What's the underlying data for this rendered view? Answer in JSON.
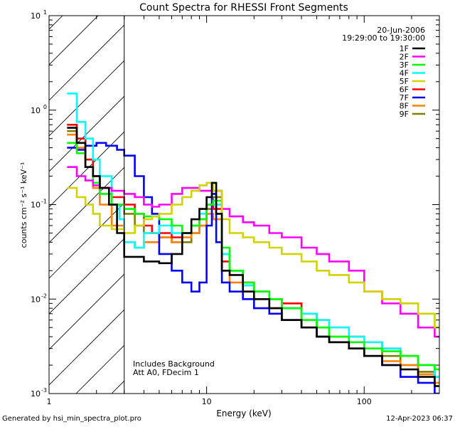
{
  "chart_data": {
    "type": "line",
    "title": "Count Spectra for RHESSI Front Segments",
    "xlabel": "Energy (keV)",
    "ylabel": "counts cm⁻² s⁻¹ keV⁻¹",
    "x_scale": "log",
    "y_scale": "log",
    "xlim": [
      1,
      300
    ],
    "ylim": [
      0.001,
      10
    ],
    "x_ticks": [
      1,
      10,
      100
    ],
    "x_tick_labels": [
      "1",
      "10",
      "100"
    ],
    "y_ticks": [
      0.001,
      0.01,
      0.1,
      1,
      10
    ],
    "y_tick_labels": [
      {
        "base": "10",
        "exp": "-3"
      },
      {
        "base": "10",
        "exp": "-2"
      },
      {
        "base": "10",
        "exp": "-1"
      },
      {
        "base": "10",
        "exp": "0"
      },
      {
        "base": "10",
        "exp": "1"
      }
    ],
    "date": "20-Jun-2006",
    "time_range": "19:29:00 to 19:30:00",
    "hatched_region_max_energy": 3,
    "annotations": [
      "Includes Background",
      "Att A0, FDecim 1"
    ],
    "legend_position": "top-right",
    "series": [
      {
        "name": "1F",
        "color": "#000000",
        "points": [
          [
            1.3,
            0.65
          ],
          [
            1.5,
            0.45
          ],
          [
            1.7,
            0.25
          ],
          [
            1.9,
            0.2
          ],
          [
            2.1,
            0.15
          ],
          [
            2.4,
            0.1
          ],
          [
            2.7,
            0.05
          ],
          [
            3.0,
            0.028
          ],
          [
            4.0,
            0.025
          ],
          [
            5.0,
            0.024
          ],
          [
            6.0,
            0.03
          ],
          [
            7.0,
            0.05
          ],
          [
            8.0,
            0.07
          ],
          [
            9.0,
            0.09
          ],
          [
            10.0,
            0.12
          ],
          [
            10.8,
            0.17
          ],
          [
            11.5,
            0.08
          ],
          [
            12.5,
            0.02
          ],
          [
            14,
            0.018
          ],
          [
            17,
            0.012
          ],
          [
            20,
            0.01
          ],
          [
            25,
            0.008
          ],
          [
            30,
            0.006
          ],
          [
            40,
            0.005
          ],
          [
            50,
            0.004
          ],
          [
            60,
            0.0035
          ],
          [
            80,
            0.003
          ],
          [
            100,
            0.0025
          ],
          [
            130,
            0.002
          ],
          [
            170,
            0.0018
          ],
          [
            220,
            0.0015
          ],
          [
            280,
            0.0012
          ]
        ]
      },
      {
        "name": "2F",
        "color": "#ff00ff",
        "points": [
          [
            1.3,
            0.25
          ],
          [
            1.5,
            0.2
          ],
          [
            1.7,
            0.18
          ],
          [
            1.9,
            0.16
          ],
          [
            2.1,
            0.15
          ],
          [
            2.5,
            0.14
          ],
          [
            3.0,
            0.13
          ],
          [
            3.5,
            0.12
          ],
          [
            4.0,
            0.1
          ],
          [
            4.5,
            0.095
          ],
          [
            5.0,
            0.1
          ],
          [
            6.0,
            0.13
          ],
          [
            7.0,
            0.15
          ],
          [
            8.0,
            0.15
          ],
          [
            9.0,
            0.14
          ],
          [
            10.0,
            0.14
          ],
          [
            11.0,
            0.14
          ],
          [
            12.5,
            0.09
          ],
          [
            14,
            0.075
          ],
          [
            17,
            0.065
          ],
          [
            20,
            0.06
          ],
          [
            25,
            0.05
          ],
          [
            30,
            0.045
          ],
          [
            40,
            0.035
          ],
          [
            50,
            0.03
          ],
          [
            60,
            0.025
          ],
          [
            80,
            0.02
          ],
          [
            100,
            0.012
          ],
          [
            130,
            0.009
          ],
          [
            170,
            0.007
          ],
          [
            220,
            0.005
          ],
          [
            280,
            0.004
          ]
        ]
      },
      {
        "name": "3F",
        "color": "#00ff00",
        "points": [
          [
            1.3,
            0.45
          ],
          [
            1.5,
            0.35
          ],
          [
            1.7,
            0.25
          ],
          [
            1.9,
            0.17
          ],
          [
            2.1,
            0.13
          ],
          [
            2.5,
            0.1
          ],
          [
            3.0,
            0.09
          ],
          [
            3.5,
            0.08
          ],
          [
            4.0,
            0.075
          ],
          [
            5.0,
            0.07
          ],
          [
            6.0,
            0.06
          ],
          [
            7.0,
            0.05
          ],
          [
            8.0,
            0.06
          ],
          [
            9.0,
            0.07
          ],
          [
            10.0,
            0.1
          ],
          [
            11.0,
            0.11
          ],
          [
            12.5,
            0.035
          ],
          [
            14,
            0.02
          ],
          [
            17,
            0.015
          ],
          [
            20,
            0.012
          ],
          [
            25,
            0.01
          ],
          [
            30,
            0.008
          ],
          [
            40,
            0.006
          ],
          [
            50,
            0.005
          ],
          [
            60,
            0.004
          ],
          [
            80,
            0.0035
          ],
          [
            100,
            0.003
          ],
          [
            130,
            0.0028
          ],
          [
            170,
            0.0025
          ],
          [
            220,
            0.002
          ],
          [
            280,
            0.0018
          ]
        ]
      },
      {
        "name": "4F",
        "color": "#00ffff",
        "points": [
          [
            1.3,
            1.5
          ],
          [
            1.5,
            0.75
          ],
          [
            1.7,
            0.5
          ],
          [
            1.9,
            0.3
          ],
          [
            2.1,
            0.2
          ],
          [
            2.5,
            0.1
          ],
          [
            2.8,
            0.07
          ],
          [
            3.0,
            0.04
          ],
          [
            3.5,
            0.035
          ],
          [
            4.0,
            0.05
          ],
          [
            5.0,
            0.06
          ],
          [
            6.0,
            0.05
          ],
          [
            7.0,
            0.05
          ],
          [
            8.0,
            0.06
          ],
          [
            9.0,
            0.08
          ],
          [
            10.0,
            0.1
          ],
          [
            11.0,
            0.1
          ],
          [
            12.5,
            0.03
          ],
          [
            14,
            0.02
          ],
          [
            17,
            0.014
          ],
          [
            20,
            0.012
          ],
          [
            25,
            0.01
          ],
          [
            30,
            0.008
          ],
          [
            40,
            0.007
          ],
          [
            50,
            0.006
          ],
          [
            60,
            0.005
          ],
          [
            80,
            0.004
          ],
          [
            100,
            0.0035
          ],
          [
            130,
            0.003
          ],
          [
            170,
            0.0025
          ],
          [
            220,
            0.002
          ],
          [
            280,
            0.0015
          ]
        ]
      },
      {
        "name": "5F",
        "color": "#d2d200",
        "points": [
          [
            1.3,
            0.15
          ],
          [
            1.5,
            0.12
          ],
          [
            1.7,
            0.1
          ],
          [
            1.9,
            0.08
          ],
          [
            2.1,
            0.06
          ],
          [
            2.5,
            0.055
          ],
          [
            3.0,
            0.05
          ],
          [
            3.5,
            0.06
          ],
          [
            4.0,
            0.07
          ],
          [
            4.5,
            0.075
          ],
          [
            5.0,
            0.08
          ],
          [
            6.0,
            0.1
          ],
          [
            7.0,
            0.12
          ],
          [
            8.0,
            0.14
          ],
          [
            9.0,
            0.16
          ],
          [
            10.0,
            0.17
          ],
          [
            11.0,
            0.14
          ],
          [
            12.5,
            0.07
          ],
          [
            14,
            0.05
          ],
          [
            17,
            0.045
          ],
          [
            20,
            0.04
          ],
          [
            25,
            0.035
          ],
          [
            30,
            0.03
          ],
          [
            40,
            0.025
          ],
          [
            50,
            0.02
          ],
          [
            60,
            0.018
          ],
          [
            80,
            0.015
          ],
          [
            100,
            0.012
          ],
          [
            130,
            0.01
          ],
          [
            170,
            0.009
          ],
          [
            220,
            0.007
          ],
          [
            280,
            0.005
          ]
        ]
      },
      {
        "name": "6F",
        "color": "#ff0000",
        "points": [
          [
            1.3,
            0.7
          ],
          [
            1.5,
            0.5
          ],
          [
            1.7,
            0.3
          ],
          [
            1.9,
            0.2
          ],
          [
            2.1,
            0.15
          ],
          [
            2.5,
            0.12
          ],
          [
            3.0,
            0.1
          ],
          [
            3.5,
            0.08
          ],
          [
            4.0,
            0.06
          ],
          [
            4.5,
            0.05
          ],
          [
            5.0,
            0.05
          ],
          [
            6.0,
            0.045
          ],
          [
            7.0,
            0.05
          ],
          [
            8.0,
            0.06
          ],
          [
            9.0,
            0.07
          ],
          [
            10.0,
            0.1
          ],
          [
            11.0,
            0.09
          ],
          [
            12.5,
            0.025
          ],
          [
            14,
            0.02
          ],
          [
            17,
            0.015
          ],
          [
            20,
            0.012
          ],
          [
            25,
            0.01
          ],
          [
            30,
            0.009
          ],
          [
            40,
            0.007
          ],
          [
            50,
            0.006
          ],
          [
            60,
            0.005
          ],
          [
            80,
            0.004
          ],
          [
            100,
            0.0035
          ],
          [
            130,
            0.003
          ],
          [
            170,
            0.0025
          ],
          [
            220,
            0.002
          ],
          [
            280,
            0.0015
          ]
        ]
      },
      {
        "name": "7F",
        "color": "#0000ff",
        "points": [
          [
            1.3,
            0.4
          ],
          [
            1.5,
            0.38
          ],
          [
            1.7,
            0.42
          ],
          [
            2.0,
            0.45
          ],
          [
            2.3,
            0.42
          ],
          [
            2.7,
            0.38
          ],
          [
            3.0,
            0.33
          ],
          [
            3.5,
            0.2
          ],
          [
            4.0,
            0.12
          ],
          [
            4.5,
            0.08
          ],
          [
            5.0,
            0.03
          ],
          [
            6.0,
            0.02
          ],
          [
            7.0,
            0.015
          ],
          [
            8.0,
            0.012
          ],
          [
            9.0,
            0.015
          ],
          [
            10.0,
            0.06
          ],
          [
            10.8,
            0.13
          ],
          [
            11.5,
            0.04
          ],
          [
            12.5,
            0.015
          ],
          [
            14,
            0.012
          ],
          [
            17,
            0.01
          ],
          [
            20,
            0.008
          ],
          [
            25,
            0.007
          ],
          [
            30,
            0.006
          ],
          [
            40,
            0.005
          ],
          [
            50,
            0.004
          ],
          [
            60,
            0.0035
          ],
          [
            80,
            0.003
          ],
          [
            100,
            0.0025
          ],
          [
            130,
            0.002
          ],
          [
            170,
            0.0015
          ],
          [
            220,
            0.0013
          ],
          [
            280,
            0.001
          ]
        ]
      },
      {
        "name": "8F",
        "color": "#ff8000",
        "points": [
          [
            1.3,
            0.55
          ],
          [
            1.5,
            0.4
          ],
          [
            1.7,
            0.25
          ],
          [
            1.9,
            0.15
          ],
          [
            2.1,
            0.1
          ],
          [
            2.5,
            0.06
          ],
          [
            3.0,
            0.04
          ],
          [
            3.5,
            0.035
          ],
          [
            4.0,
            0.04
          ],
          [
            5.0,
            0.045
          ],
          [
            6.0,
            0.04
          ],
          [
            7.0,
            0.045
          ],
          [
            8.0,
            0.05
          ],
          [
            9.0,
            0.06
          ],
          [
            10.0,
            0.08
          ],
          [
            11.0,
            0.07
          ],
          [
            12.5,
            0.02
          ],
          [
            14,
            0.015
          ],
          [
            17,
            0.012
          ],
          [
            20,
            0.01
          ],
          [
            25,
            0.008
          ],
          [
            30,
            0.006
          ],
          [
            40,
            0.005
          ],
          [
            50,
            0.004
          ],
          [
            60,
            0.0035
          ],
          [
            80,
            0.003
          ],
          [
            100,
            0.0025
          ],
          [
            130,
            0.0022
          ],
          [
            170,
            0.002
          ],
          [
            220,
            0.0016
          ],
          [
            280,
            0.0013
          ]
        ]
      },
      {
        "name": "9F",
        "color": "#808000",
        "points": [
          [
            1.3,
            0.6
          ],
          [
            1.5,
            0.45
          ],
          [
            1.7,
            0.3
          ],
          [
            1.9,
            0.2
          ],
          [
            2.1,
            0.15
          ],
          [
            2.5,
            0.1
          ],
          [
            3.0,
            0.08
          ],
          [
            3.5,
            0.06
          ],
          [
            4.0,
            0.05
          ],
          [
            5.0,
            0.045
          ],
          [
            6.0,
            0.04
          ],
          [
            7.0,
            0.04
          ],
          [
            8.0,
            0.05
          ],
          [
            9.0,
            0.06
          ],
          [
            10.0,
            0.09
          ],
          [
            11.0,
            0.12
          ],
          [
            12.5,
            0.03
          ],
          [
            14,
            0.02
          ],
          [
            17,
            0.014
          ],
          [
            20,
            0.012
          ],
          [
            25,
            0.01
          ],
          [
            30,
            0.008
          ],
          [
            40,
            0.006
          ],
          [
            50,
            0.005
          ],
          [
            60,
            0.004
          ],
          [
            80,
            0.0035
          ],
          [
            100,
            0.003
          ],
          [
            130,
            0.0025
          ],
          [
            170,
            0.002
          ],
          [
            220,
            0.0017
          ],
          [
            280,
            0.0012
          ]
        ]
      }
    ]
  },
  "footer": {
    "left": "Generated by hsi_min_spectra_plot.pro",
    "right": "12-Apr-2023 06:37"
  }
}
